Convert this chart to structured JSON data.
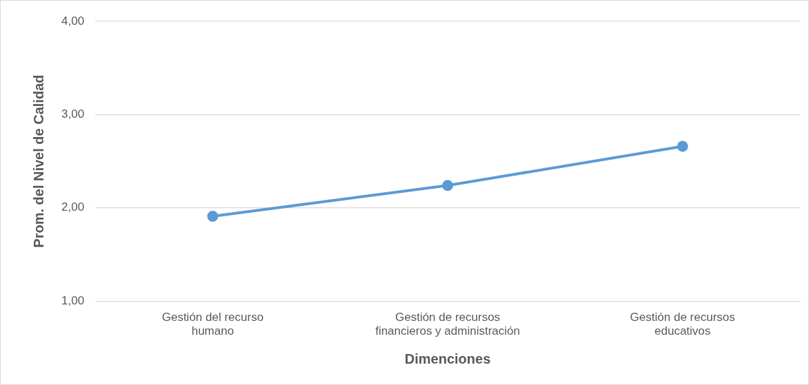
{
  "chart_data": {
    "type": "line",
    "xlabel": "Dimenciones",
    "ylabel": "Prom. del Nivel de Calidad",
    "categories": [
      "Gestión del recurso humano",
      "Gestión de recursos financieros y administración",
      "Gestión de recursos educativos"
    ],
    "series": [
      {
        "color": "#5b9bd5",
        "values": [
          1.91,
          2.24,
          2.66
        ]
      }
    ],
    "ylim": [
      1,
      4
    ],
    "yticks": [
      {
        "value": 1,
        "label": "1,00"
      },
      {
        "value": 2,
        "label": "2,00"
      },
      {
        "value": 3,
        "label": "3,00"
      },
      {
        "value": 4,
        "label": "4,00"
      }
    ],
    "grid": "y",
    "legend": false,
    "marker": "circle",
    "line_style": "solid"
  }
}
